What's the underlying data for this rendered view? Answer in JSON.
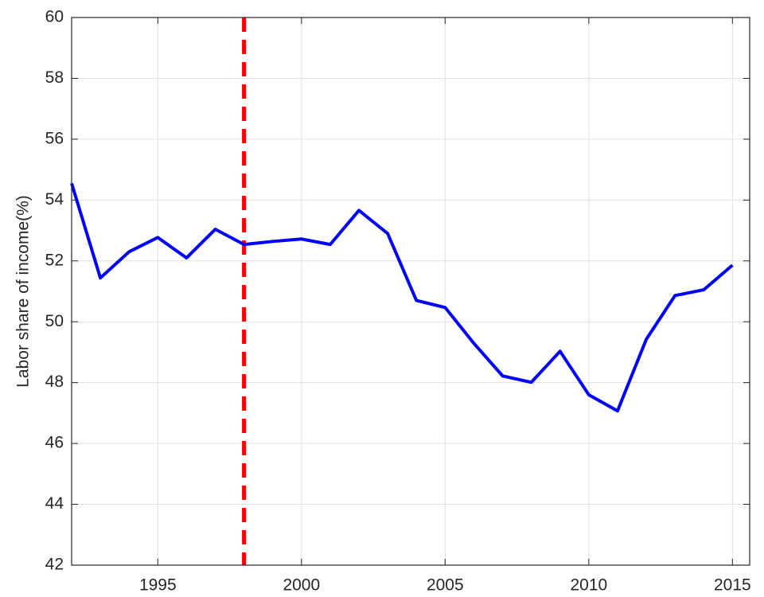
{
  "chart_data": {
    "type": "line",
    "y_label": "Labor share of income(%)",
    "x": [
      1992,
      1993,
      1994,
      1995,
      1996,
      1997,
      1998,
      1999,
      2000,
      2001,
      2002,
      2003,
      2004,
      2005,
      2006,
      2007,
      2008,
      2009,
      2010,
      2011,
      2012,
      2013,
      2014,
      2015
    ],
    "series": [
      {
        "color": "#0000ff",
        "values": [
          54.55,
          51.44,
          52.3,
          52.77,
          52.1,
          53.04,
          52.54,
          52.64,
          52.72,
          52.54,
          53.66,
          52.9,
          50.7,
          50.47,
          49.29,
          48.22,
          48.01,
          49.03,
          47.6,
          47.07,
          49.42,
          50.86,
          51.05,
          51.86
        ]
      }
    ],
    "vline": {
      "x": 1998,
      "color": "#ff0000"
    },
    "xlim": [
      1992,
      2015.6
    ],
    "ylim": [
      42,
      60
    ],
    "xticks": [
      1995,
      2000,
      2005,
      2010,
      2015
    ],
    "yticks": [
      42,
      44,
      46,
      48,
      50,
      52,
      54,
      56,
      58,
      60
    ],
    "grid": true
  }
}
